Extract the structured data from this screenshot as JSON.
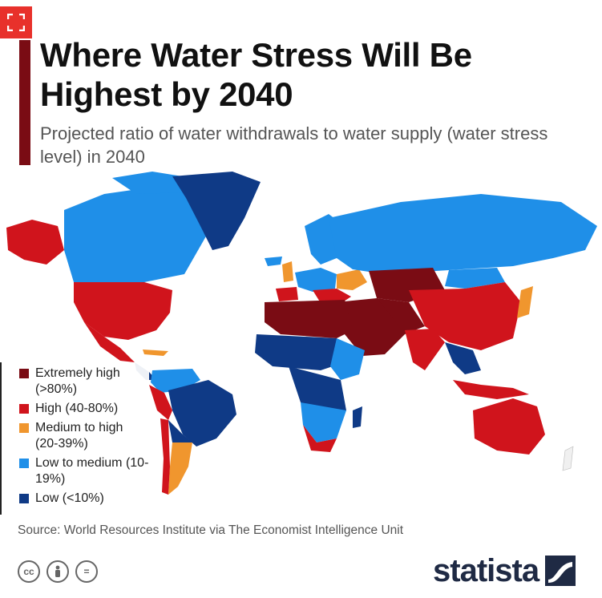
{
  "header": {
    "title": "Where Water Stress Will Be Highest by 2040",
    "subtitle": "Projected ratio of water withdrawals to water supply (water stress level) in 2040"
  },
  "colors": {
    "extremely_high": "#7a0c14",
    "high": "#d0141c",
    "medium_high": "#f0962e",
    "low_medium": "#1f8fe8",
    "low": "#0f3a86",
    "title_bar": "#7a0c14",
    "expand_button": "#e8312b"
  },
  "legend": {
    "items": [
      {
        "label": "Extremely high (>80%)",
        "color": "#7a0c14"
      },
      {
        "label": "High (40-80%)",
        "color": "#d0141c"
      },
      {
        "label": "Medium to high (20-39%)",
        "color": "#f0962e"
      },
      {
        "label": "Low to medium (10-19%)",
        "color": "#1f8fe8"
      },
      {
        "label": "Low (<10%)",
        "color": "#0f3a86"
      }
    ]
  },
  "footer": {
    "source": "Source: World Resources Institute via The Economist Intelligence Unit",
    "license_icons": [
      "cc-icon",
      "attribution-icon",
      "no-derivatives-icon"
    ],
    "cc_text": "cc",
    "nd_text": "=",
    "brand": "statista"
  },
  "icons": {
    "expand": "expand-icon"
  }
}
